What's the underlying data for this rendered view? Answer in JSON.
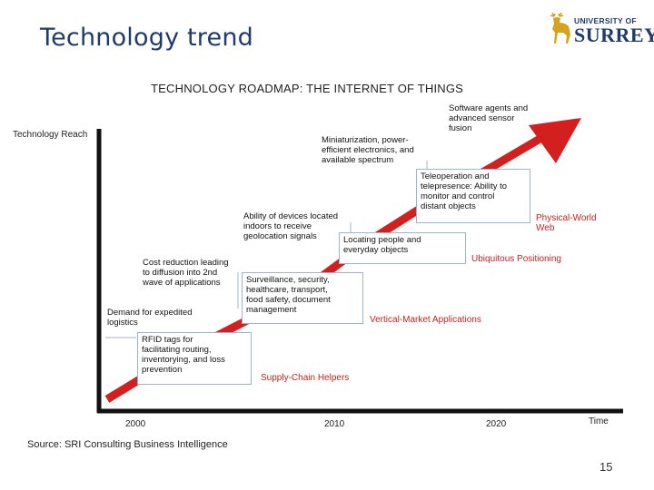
{
  "slide": {
    "title": "Technology trend",
    "page_number": "15"
  },
  "logo": {
    "line1": "UNIVERSITY OF",
    "line2": "SURREY",
    "icon": "stag-emblem-icon",
    "color": "#1f3a6e",
    "emblem_color": "#d7a21c"
  },
  "diagram": {
    "title": "TECHNOLOGY ROADMAP: THE INTERNET OF THINGS",
    "y_axis_label": "Technology Reach",
    "x_axis_label": "Time",
    "x_ticks": [
      "2000",
      "2010",
      "2020"
    ],
    "source": "Source: SRI Consulting Business Intelligence",
    "arrow_color": "#d41f1f",
    "phases": [
      {
        "name": "Supply-Chain Helpers",
        "box_lines": [
          "RFID tags for",
          "facilitating routing,",
          "inventorying, and loss",
          "prevention"
        ],
        "driver_lines": [
          "Demand for expedited",
          "logistics"
        ]
      },
      {
        "name": "Vertical-Market Applications",
        "box_lines": [
          "Surveillance, security,",
          "healthcare, transport,",
          "food safety,  document",
          "management"
        ],
        "driver_lines": [
          "Cost reduction leading",
          "to diffusion into 2nd",
          "wave of applications"
        ]
      },
      {
        "name": "Ubiquitous Positioning",
        "box_lines": [
          "Locating people and",
          "everyday objects"
        ],
        "driver_lines": [
          "Ability of devices located",
          "indoors to receive",
          "geolocation signals"
        ]
      },
      {
        "name_lines": [
          "Physical-World",
          "Web"
        ],
        "box_lines": [
          "Teleoperation and",
          "telepresence: Ability to",
          "monitor and control",
          "distant objects"
        ],
        "driver_lines": [
          "Miniaturization, power-",
          "efficient electronics, and",
          "available spectrum"
        ]
      }
    ],
    "top_label_lines": [
      "Software agents and",
      "advanced sensor",
      "fusion"
    ]
  }
}
